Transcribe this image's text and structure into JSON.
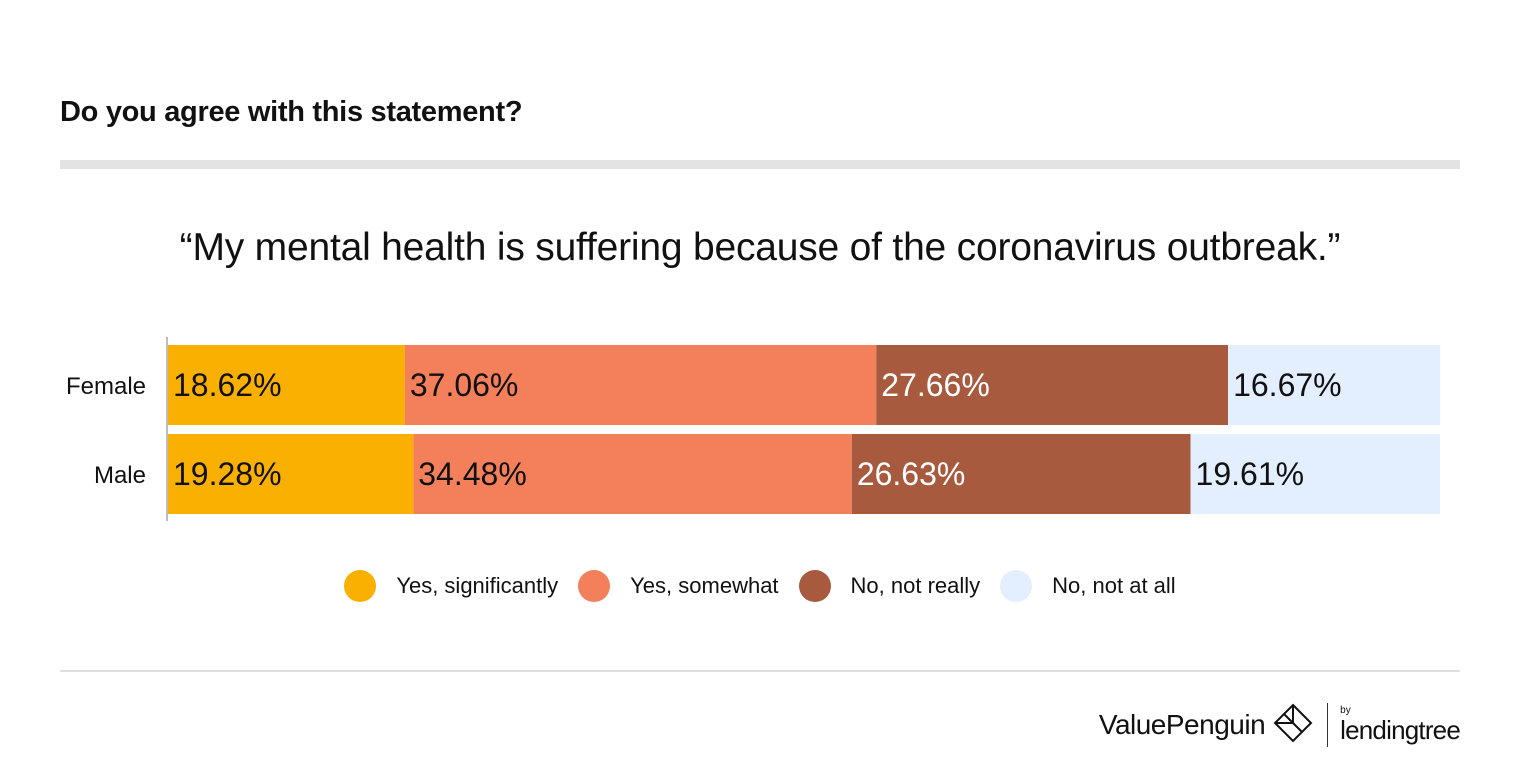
{
  "header": {
    "title": "Do you agree with this statement?"
  },
  "chart_data": {
    "type": "bar",
    "orientation": "horizontal",
    "stacked": true,
    "title": "“My mental health is suffering because of the coronavirus outbreak.”",
    "categories": [
      "Female",
      "Male"
    ],
    "series": [
      {
        "name": "Yes, significantly",
        "values": [
          18.62,
          19.28
        ],
        "labels": [
          "18.62%",
          "19.28%"
        ],
        "color": "#f9b000",
        "label_color": "#111111"
      },
      {
        "name": "Yes, somewhat",
        "values": [
          37.06,
          34.48
        ],
        "labels": [
          "37.06%",
          "34.48%"
        ],
        "color": "#f37f5b",
        "label_color": "#111111"
      },
      {
        "name": "No, not really",
        "values": [
          27.66,
          26.63
        ],
        "labels": [
          "27.66%",
          "26.63%"
        ],
        "color": "#a85a3e",
        "label_color": "#ffffff"
      },
      {
        "name": "No, not at all",
        "values": [
          16.67,
          19.61
        ],
        "labels": [
          "16.67%",
          "19.61%"
        ],
        "color": "#e3efff",
        "label_color": "#111111"
      }
    ],
    "xlim": [
      0,
      100
    ],
    "grid": false,
    "legend_position": "bottom"
  },
  "brand": {
    "name": "ValuePenguin",
    "by": "by",
    "partner": "lendingtree",
    "mark_icon": "valuepenguin-logo-icon"
  }
}
